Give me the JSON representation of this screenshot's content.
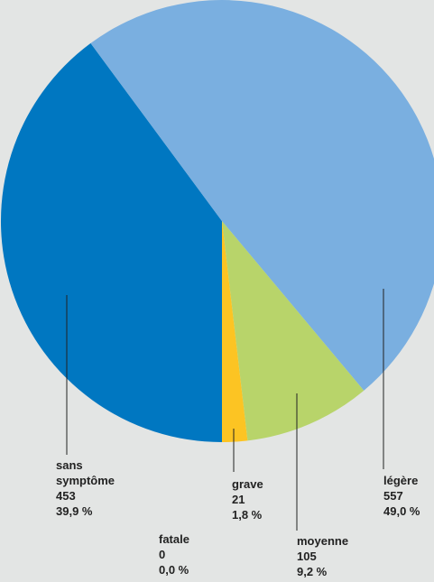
{
  "colors": {
    "background": "#e3e5e4",
    "sans_symptome": "#0077c1",
    "legere": "#7aafe0",
    "moyenne": "#b8d46a",
    "grave": "#fcc423",
    "fatale": "#9e9e9e",
    "leader_line": "#222222"
  },
  "chart_data": {
    "type": "pie",
    "title": "",
    "start": "bottom",
    "direction": "clockwise",
    "slices": [
      {
        "key": "fatale",
        "name": "fatale",
        "value": 0,
        "count": "0",
        "percent": "0,0 %"
      },
      {
        "key": "sans_symptome",
        "name": "sans symptôme",
        "name_lines": [
          "sans",
          "symptôme"
        ],
        "value": 453,
        "count": "453",
        "percent": "39,9 %"
      },
      {
        "key": "legere",
        "name": "légère",
        "value": 557,
        "count": "557",
        "percent": "49,0 %"
      },
      {
        "key": "moyenne",
        "name": "moyenne",
        "value": 105,
        "count": "105",
        "percent": "9,2 %"
      },
      {
        "key": "grave",
        "name": "grave",
        "value": 21,
        "count": "21",
        "percent": "1,8 %"
      }
    ]
  }
}
